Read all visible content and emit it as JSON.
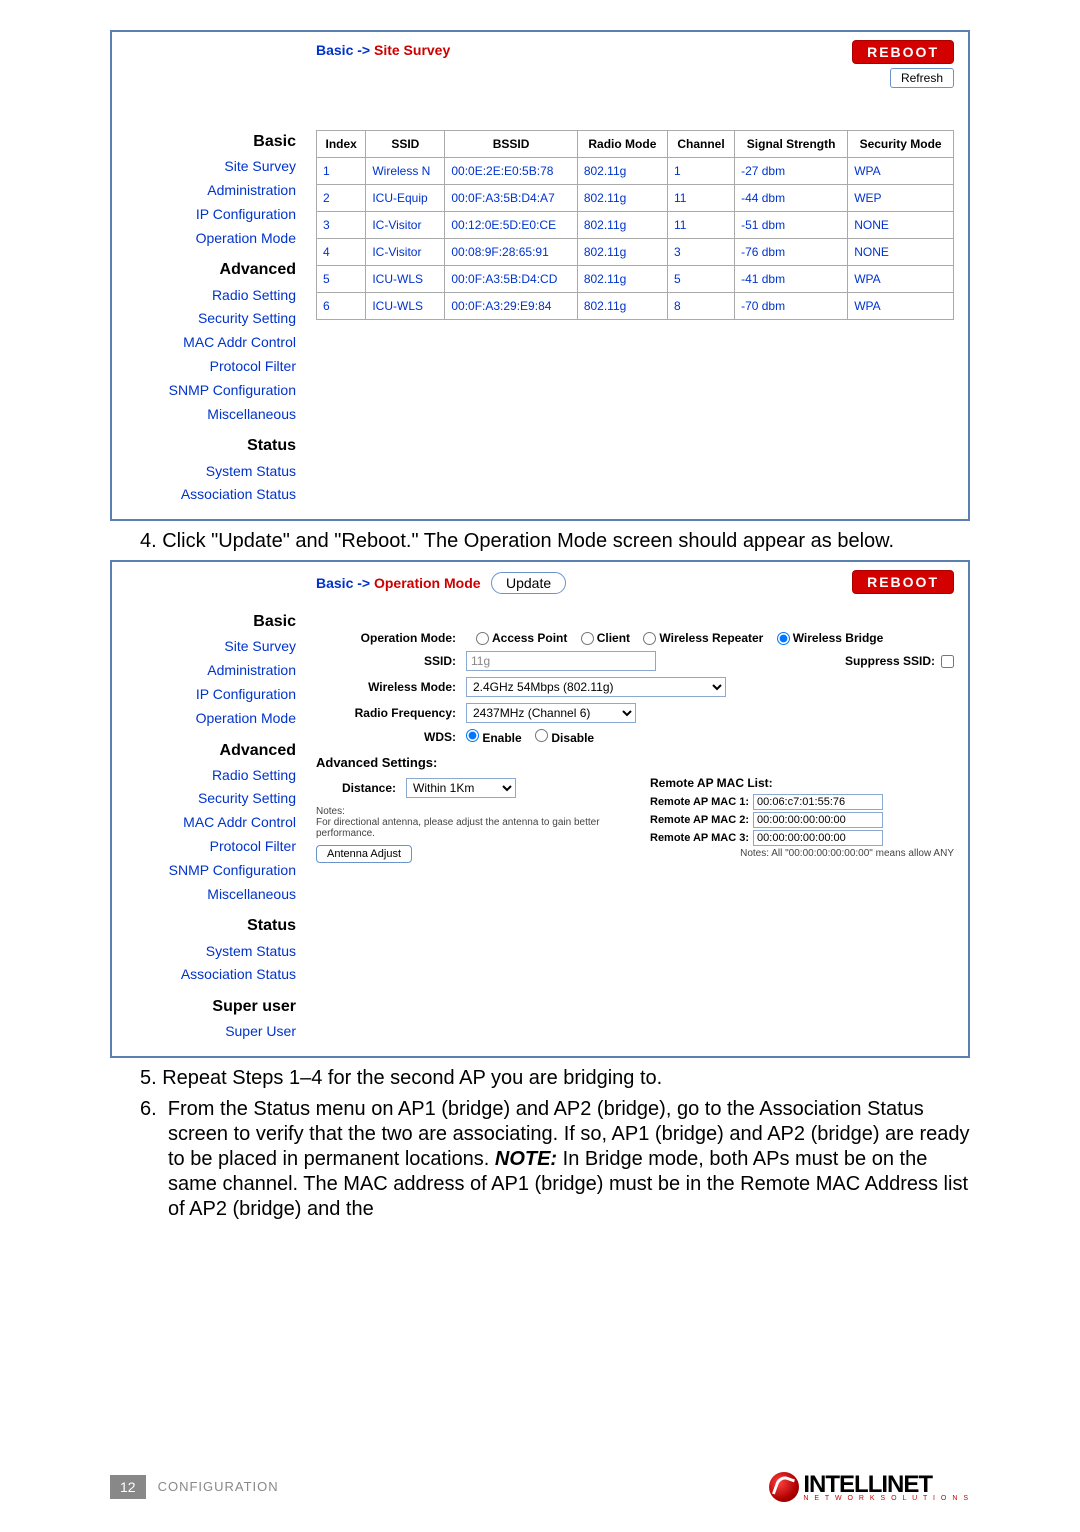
{
  "page": {
    "number": "12",
    "section": "CONFIGURATION"
  },
  "logo": {
    "brand": "INTELLINET",
    "tagline": "N E T W O R K   S O L U T I O N S"
  },
  "instructions": {
    "step4": "4.  Click \"Update\" and \"Reboot.\" The Operation Mode screen should appear as below.",
    "step5": "5.  Repeat Steps 1–4 for the second AP you are bridging to.",
    "step6": "6.  From the Status menu on AP1 (bridge) and AP2 (bridge), go to the Association Status screen to verify that the two are associating. If so, AP1 (bridge) and AP2 (bridge) are ready to be placed in permanent locations. NOTE: In Bridge mode, both APs must be on the same channel. The MAC address of AP1 (bridge) must be in the Remote MAC Address list of AP2 (bridge) and the"
  },
  "sidebar": {
    "basic_hdr": "Basic",
    "basic_items": [
      "Site Survey",
      "Administration",
      "IP Configuration",
      "Operation Mode"
    ],
    "advanced_hdr": "Advanced",
    "advanced_items": [
      "Radio Setting",
      "Security Setting",
      "MAC Addr Control",
      "Protocol Filter",
      "SNMP Configuration",
      "Miscellaneous"
    ],
    "status_hdr": "Status",
    "status_items": [
      "System Status",
      "Association Status"
    ],
    "super_hdr": "Super user",
    "super_items": [
      "Super User"
    ]
  },
  "panel1": {
    "crumb_prefix": "Basic -> ",
    "crumb_current": "Site Survey",
    "reboot": "REBOOT",
    "refresh": "Refresh",
    "headers": [
      "Index",
      "SSID",
      "BSSID",
      "Radio Mode",
      "Channel",
      "Signal Strength",
      "Security Mode"
    ],
    "rows": [
      [
        "1",
        "Wireless N",
        "00:0E:2E:E0:5B:78",
        "802.11g",
        "1",
        "-27 dbm",
        "WPA"
      ],
      [
        "2",
        "ICU-Equip",
        "00:0F:A3:5B:D4:A7",
        "802.11g",
        "11",
        "-44 dbm",
        "WEP"
      ],
      [
        "3",
        "IC-Visitor",
        "00:12:0E:5D:E0:CE",
        "802.11g",
        "11",
        "-51 dbm",
        "NONE"
      ],
      [
        "4",
        "IC-Visitor",
        "00:08:9F:28:65:91",
        "802.11g",
        "3",
        "-76 dbm",
        "NONE"
      ],
      [
        "5",
        "ICU-WLS",
        "00:0F:A3:5B:D4:CD",
        "802.11g",
        "5",
        "-41 dbm",
        "WPA"
      ],
      [
        "6",
        "ICU-WLS",
        "00:0F:A3:29:E9:84",
        "802.11g",
        "8",
        "-70 dbm",
        "WPA"
      ]
    ]
  },
  "panel2": {
    "crumb_prefix": "Basic -> ",
    "crumb_current": "Operation Mode",
    "update": "Update",
    "reboot": "REBOOT",
    "opmode_label": "Operation Mode:",
    "opmode_opts": [
      "Access Point",
      "Client",
      "Wireless Repeater",
      "Wireless Bridge"
    ],
    "ssid_label": "SSID:",
    "ssid_value": "11g",
    "suppress_label": "Suppress SSID:",
    "wmode_label": "Wireless Mode:",
    "wmode_value": "2.4GHz 54Mbps (802.11g)",
    "rfreq_label": "Radio Frequency:",
    "rfreq_value": "2437MHz (Channel 6)",
    "wds_label": "WDS:",
    "wds_opts": [
      "Enable",
      "Disable"
    ],
    "adv_settings": "Advanced Settings:",
    "distance_label": "Distance:",
    "distance_value": "Within 1Km",
    "distance_notes_hdr": "Notes:",
    "distance_notes": "For directional antenna, please adjust the antenna to gain better performance.",
    "antenna_btn": "Antenna Adjust",
    "remote_hdr": "Remote AP MAC List:",
    "mac1_lbl": "Remote AP MAC 1:",
    "mac1_val": "00:06:c7:01:55:76",
    "mac2_lbl": "Remote AP MAC 2:",
    "mac2_val": "00:00:00:00:00:00",
    "mac3_lbl": "Remote AP MAC 3:",
    "mac3_val": "00:00:00:00:00:00",
    "mac_notes": "Notes: All \"00:00:00:00:00:00\" means allow ANY"
  }
}
